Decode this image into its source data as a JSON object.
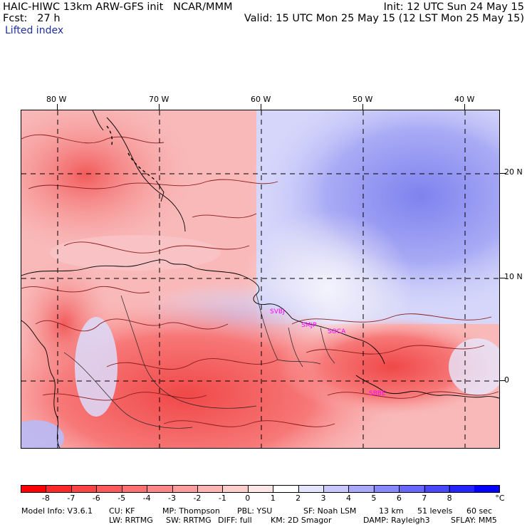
{
  "header": {
    "title": "HAIC-HIWC 13km ARW-GFS init   NCAR/MMM",
    "init": "Init: 12 UTC Sun 24 May 15",
    "fcst": "Fcst:   27 h",
    "valid": "Valid: 15 UTC Mon 25 May 15 (12 LST Mon 25 May 15)",
    "field": "Lifted index"
  },
  "axes": {
    "lon_labels": [
      "80 W",
      "70 W",
      "60 W",
      "50 W",
      "40 W"
    ],
    "lat_labels": [
      "20 N",
      "10 N",
      "0"
    ]
  },
  "map": {
    "field_name": "Lifted index",
    "units": "°C",
    "gridlines": "dashed",
    "stations": [
      "SVBJ",
      "SMJP",
      "SOCA",
      "SBBE"
    ],
    "region": "Tropical Atlantic, Caribbean and northern South America"
  },
  "colorbar": {
    "labels": [
      "-8",
      "-7",
      "-6",
      "-5",
      "-4",
      "-3",
      "-2",
      "-1",
      "0",
      "1",
      "2",
      "3",
      "4",
      "5",
      "6",
      "7",
      "8"
    ],
    "unit": "°C",
    "colors": [
      "#ff0000",
      "#ff2828",
      "#ff4444",
      "#ff5a5a",
      "#ff7070",
      "#ff8686",
      "#ff9c9c",
      "#ffb4b4",
      "#ffcccc",
      "#ffe6e6",
      "#ffffff",
      "#e4e4ff",
      "#c8c8ff",
      "#a8a8ff",
      "#8888ff",
      "#6868ff",
      "#4848ff",
      "#2424ff",
      "#0000ff"
    ]
  },
  "footer": {
    "line1": [
      "Model Info: V3.6.1",
      "CU: KF",
      "MP: Thompson",
      "PBL: YSU",
      "SF: Noah LSM",
      "13 km",
      "51 levels",
      "60 sec"
    ],
    "line2": [
      "LW: RRTMG",
      "SW: RRTMG",
      "DIFF: full",
      "KM: 2D Smagor",
      "DAMP: Rayleigh3",
      "SFLAY: MM5"
    ]
  }
}
